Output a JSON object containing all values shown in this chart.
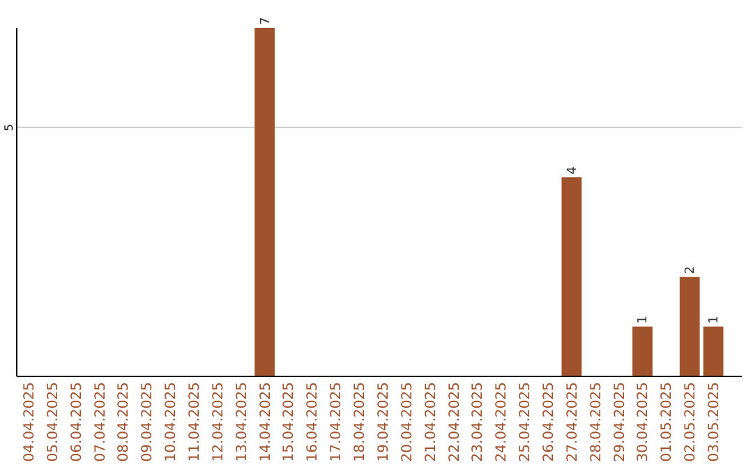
{
  "chart_data": {
    "type": "bar",
    "categories": [
      "04.04.2025",
      "05.04.2025",
      "06.04.2025",
      "07.04.2025",
      "08.04.2025",
      "09.04.2025",
      "10.04.2025",
      "11.04.2025",
      "12.04.2025",
      "13.04.2025",
      "14.04.2025",
      "15.04.2025",
      "16.04.2025",
      "17.04.2025",
      "18.04.2025",
      "19.04.2025",
      "20.04.2025",
      "21.04.2025",
      "22.04.2025",
      "23.04.2025",
      "24.04.2025",
      "25.04.2025",
      "26.04.2025",
      "27.04.2025",
      "28.04.2025",
      "29.04.2025",
      "30.04.2025",
      "01.05.2025",
      "02.05.2025",
      "03.05.2025"
    ],
    "values": [
      0,
      0,
      0,
      0,
      0,
      0,
      0,
      0,
      0,
      0,
      7,
      0,
      0,
      0,
      0,
      0,
      0,
      0,
      0,
      0,
      0,
      0,
      0,
      4,
      0,
      0,
      1,
      0,
      2,
      1
    ],
    "value_labels": [
      null,
      null,
      null,
      null,
      null,
      null,
      null,
      null,
      null,
      null,
      "7",
      null,
      null,
      null,
      null,
      null,
      null,
      null,
      null,
      null,
      null,
      null,
      null,
      "4",
      null,
      null,
      "1",
      null,
      "2",
      "1"
    ],
    "color": "#a0522d",
    "ylim": [
      0,
      7
    ],
    "yticks": [
      5
    ],
    "grid": "y"
  }
}
